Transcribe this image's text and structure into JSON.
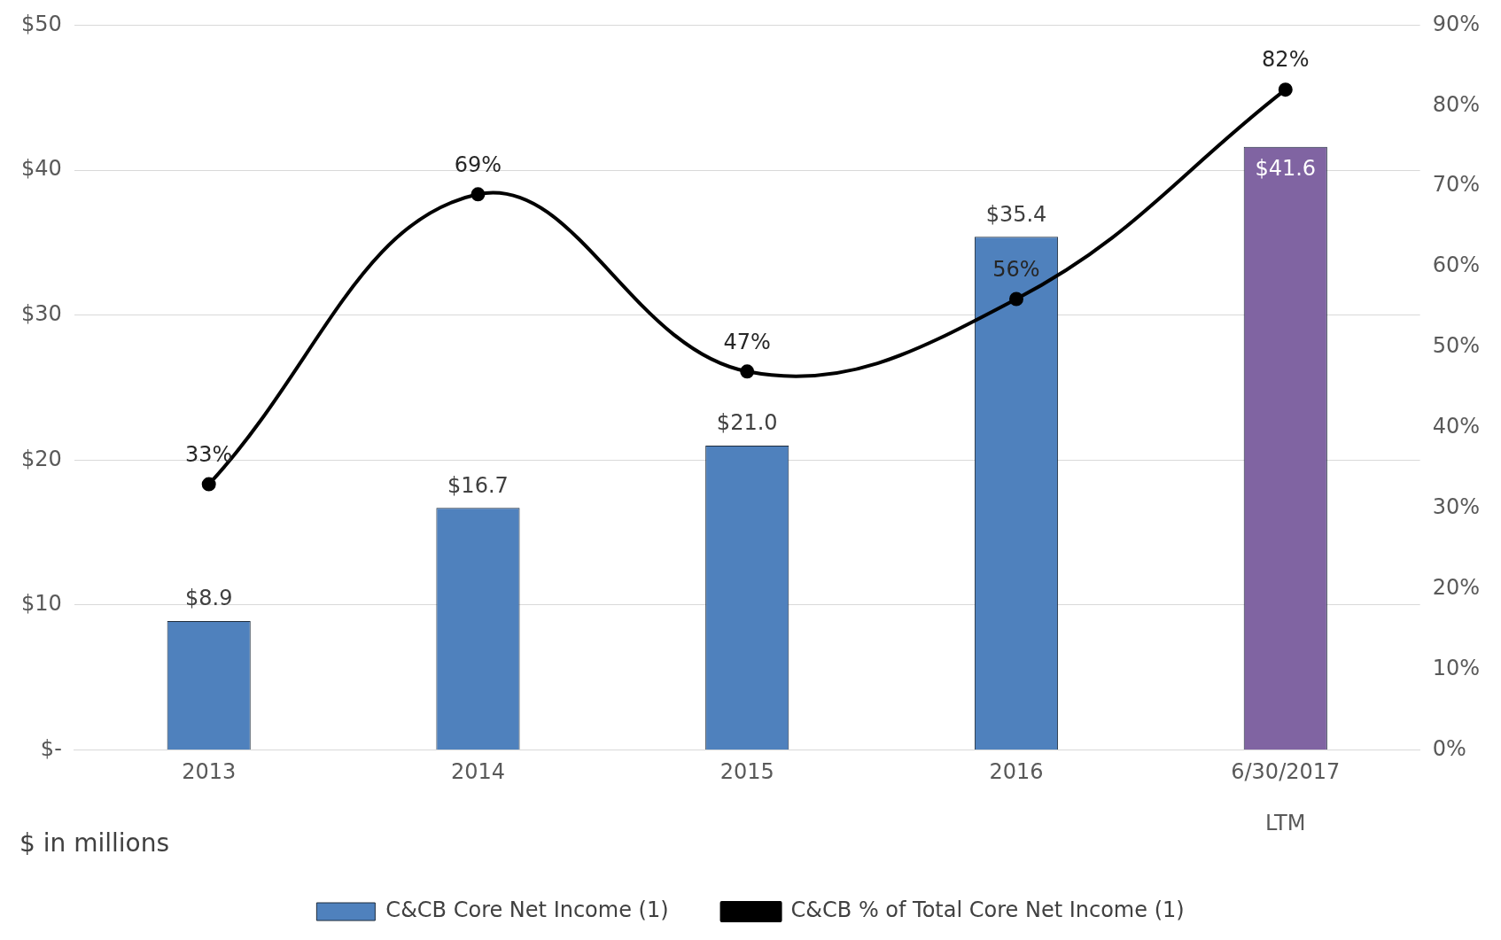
{
  "chart_data": {
    "type": "bar",
    "categories": [
      "2013",
      "2014",
      "2015",
      "2016",
      "6/30/2017\nLTM"
    ],
    "series": [
      {
        "name": "C&CB Core Net Income (1)",
        "colors": [
          "#4f81bd",
          "#4f81bd",
          "#4f81bd",
          "#4f81bd",
          "#8064a2"
        ],
        "values": [
          8.9,
          16.7,
          21.0,
          35.4,
          41.6
        ],
        "value_labels": [
          "$8.9",
          "$16.7",
          "$21.0",
          "$35.4",
          "$41.6"
        ]
      },
      {
        "name": "C&CB % of Total Core Net Income (1)",
        "type": "line",
        "axis": "y2",
        "color": "#000000",
        "values": [
          33,
          69,
          47,
          56,
          82
        ],
        "value_labels": [
          "33%",
          "69%",
          "47%",
          "56%",
          "82%"
        ],
        "marker": "circle"
      }
    ],
    "ylim": [
      0,
      50
    ],
    "yticks": [
      {
        "value": 0,
        "label": "$-"
      },
      {
        "value": 10,
        "label": "$10"
      },
      {
        "value": 20,
        "label": "$20"
      },
      {
        "value": 30,
        "label": "$30"
      },
      {
        "value": 40,
        "label": "$40"
      },
      {
        "value": 50,
        "label": "$50"
      }
    ],
    "y2lim": [
      0,
      90
    ],
    "y2ticks": [
      {
        "value": 0,
        "label": "0%"
      },
      {
        "value": 10,
        "label": "10%"
      },
      {
        "value": 20,
        "label": "20%"
      },
      {
        "value": 30,
        "label": "30%"
      },
      {
        "value": 40,
        "label": "40%"
      },
      {
        "value": 50,
        "label": "50%"
      },
      {
        "value": 60,
        "label": "60%"
      },
      {
        "value": 70,
        "label": "70%"
      },
      {
        "value": 80,
        "label": "80%"
      },
      {
        "value": 90,
        "label": "90%"
      }
    ],
    "grid": "y",
    "legend": "bottom",
    "annotations": [
      "$ in millions"
    ]
  }
}
